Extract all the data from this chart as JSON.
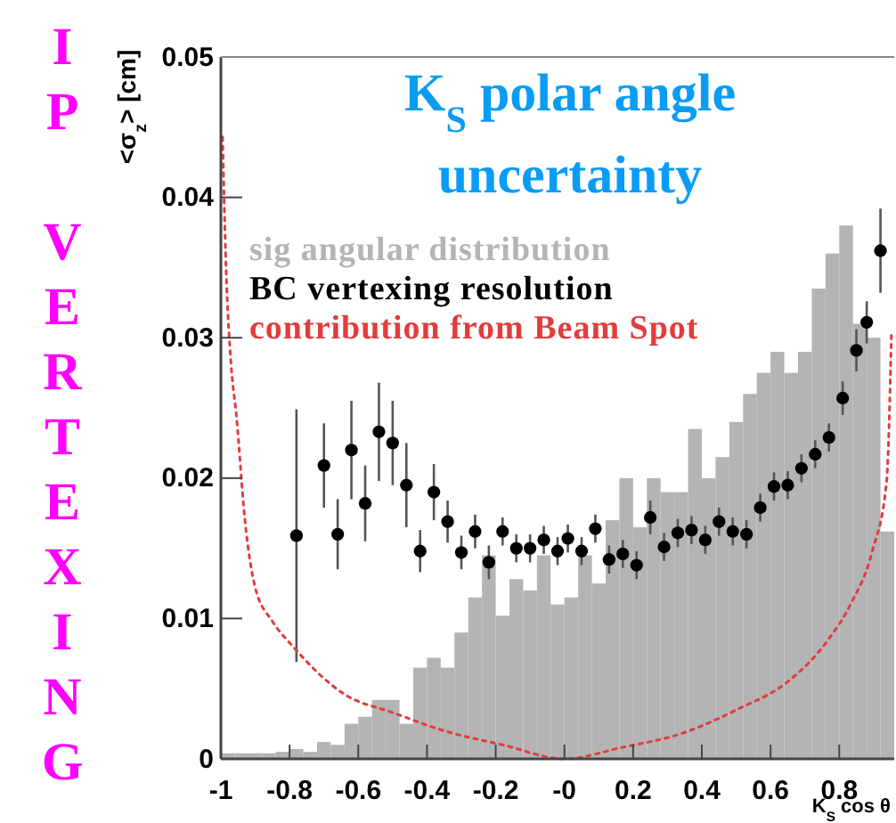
{
  "chart_data": {
    "type": "histogram",
    "title": "K$_{S}$ polar angle uncertainty",
    "xlabel": "K$_{S}$ cos θ",
    "ylabel": "<σ$_{z}$> [cm]",
    "annotations": [
      "IP VERTEXING"
    ],
    "xlim": [
      -1,
      0.96
    ],
    "xticks": [
      -1,
      -0.8,
      -0.6,
      -0.4,
      -0.2,
      {
        "value": 0,
        "label": "-0"
      },
      0.2,
      0.4,
      0.6,
      0.8
    ],
    "ylim": [
      0,
      0.05
    ],
    "yticks": [
      0,
      0.01,
      0.02,
      0.03,
      0.04,
      0.05
    ],
    "grid": false,
    "legend": "top left",
    "series": [
      {
        "name": "sig angular distribution",
        "color": "#b4b4b4",
        "bins": [
          -1,
          -0.96,
          -0.92,
          -0.88,
          -0.84,
          -0.8,
          -0.76,
          -0.72,
          -0.68,
          -0.64,
          -0.6,
          -0.56,
          -0.52,
          -0.48,
          -0.44,
          -0.4,
          -0.36,
          -0.32,
          -0.28,
          -0.24,
          -0.2,
          -0.16,
          -0.12,
          -0.08,
          -0.04,
          0,
          0.04,
          0.08,
          0.12,
          0.16,
          0.2,
          0.24,
          0.28,
          0.32,
          0.36,
          0.4,
          0.44,
          0.48,
          0.52,
          0.56,
          0.6,
          0.64,
          0.68,
          0.72,
          0.76,
          0.8,
          0.84,
          0.88,
          0.92,
          0.96
        ],
        "values": [
          0.0004,
          0.0004,
          0.0004,
          0.0004,
          0.0005,
          0.0007,
          0.0005,
          0.0012,
          0.001,
          0.0025,
          0.003,
          0.0042,
          0.0042,
          0.0025,
          0.0065,
          0.0072,
          0.0065,
          0.009,
          0.0115,
          0.0145,
          0.0102,
          0.0128,
          0.012,
          0.0145,
          0.011,
          0.0115,
          0.0145,
          0.0125,
          0.017,
          0.02,
          0.0165,
          0.02,
          0.019,
          0.019,
          0.0235,
          0.02,
          0.0215,
          0.024,
          0.026,
          0.0275,
          0.029,
          0.0275,
          0.029,
          0.0335,
          0.036,
          0.038,
          0.031,
          0.03,
          0.0162
        ]
      },
      {
        "type": "scatter",
        "name": "BC vertexing resolution",
        "color": "#000000",
        "marker": "circle",
        "x": [
          -0.78,
          -0.7,
          -0.66,
          -0.62,
          -0.58,
          -0.54,
          -0.5,
          -0.46,
          -0.42,
          -0.38,
          -0.34,
          -0.3,
          -0.26,
          -0.22,
          -0.18,
          -0.14,
          -0.1,
          -0.06,
          -0.02,
          0.01,
          0.05,
          0.09,
          0.13,
          0.17,
          0.21,
          0.25,
          0.29,
          0.33,
          0.37,
          0.41,
          0.45,
          0.49,
          0.53,
          0.57,
          0.61,
          0.65,
          0.69,
          0.73,
          0.77,
          0.81,
          0.85,
          0.88,
          0.92
        ],
        "values": [
          0.0159,
          0.0209,
          0.016,
          0.022,
          0.0182,
          0.0233,
          0.0225,
          0.0195,
          0.0148,
          0.019,
          0.0169,
          0.0147,
          0.0162,
          0.014,
          0.0162,
          0.015,
          0.015,
          0.0156,
          0.0148,
          0.0157,
          0.0148,
          0.0164,
          0.0142,
          0.0146,
          0.0138,
          0.0172,
          0.0151,
          0.0161,
          0.0163,
          0.0156,
          0.0169,
          0.0162,
          0.016,
          0.0179,
          0.0194,
          0.0195,
          0.0207,
          0.0217,
          0.0229,
          0.0257,
          0.0291,
          0.0311,
          0.0362
        ],
        "errors": [
          0.009,
          0.003,
          0.0025,
          0.0035,
          0.0027,
          0.0035,
          0.003,
          0.003,
          0.0015,
          0.002,
          0.0015,
          0.0012,
          0.0012,
          0.0012,
          0.001,
          0.001,
          0.001,
          0.001,
          0.001,
          0.001,
          0.001,
          0.001,
          0.001,
          0.001,
          0.001,
          0.0012,
          0.001,
          0.001,
          0.001,
          0.001,
          0.001,
          0.001,
          0.001,
          0.001,
          0.001,
          0.001,
          0.001,
          0.001,
          0.001,
          0.0012,
          0.0015,
          0.0015,
          0.003
        ]
      },
      {
        "type": "line",
        "name": "contribution from Beam Spot",
        "color": "#e23c3c",
        "line_style": "dotted",
        "x": [
          -0.995,
          -0.985,
          -0.97,
          -0.955,
          -0.93,
          -0.9,
          -0.85,
          -0.79,
          -0.64,
          -0.5,
          -0.35,
          -0.18,
          0,
          0.165,
          0.34,
          0.51,
          0.645,
          0.765,
          0.835,
          0.895,
          0.938,
          0.952
        ],
        "values": [
          0.0443,
          0.035,
          0.028,
          0.0245,
          0.017,
          0.0122,
          0.0098,
          0.008,
          0.0046,
          0.0033,
          0.002,
          0.001,
          0,
          0.0008,
          0.0018,
          0.0036,
          0.0054,
          0.0084,
          0.0111,
          0.0147,
          0.0198,
          0.0304
        ]
      }
    ]
  }
}
